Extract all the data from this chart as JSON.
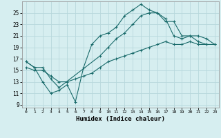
{
  "xlabel": "Humidex (Indice chaleur)",
  "background_color": "#d6eef0",
  "grid_color": "#b8d8dc",
  "line_color": "#1a6b6b",
  "x_ticks": [
    0,
    1,
    2,
    3,
    4,
    5,
    6,
    7,
    8,
    9,
    10,
    11,
    12,
    13,
    14,
    15,
    16,
    17,
    18,
    19,
    20,
    21,
    22,
    23
  ],
  "y_ticks": [
    9,
    11,
    13,
    15,
    17,
    19,
    21,
    23,
    25
  ],
  "ylim": [
    8.5,
    27
  ],
  "xlim": [
    -0.5,
    23.5
  ],
  "line_jagged_x": [
    0,
    1,
    2,
    3,
    4,
    5,
    6,
    7,
    8,
    9,
    10,
    11,
    12,
    13,
    14,
    15,
    16,
    17,
    18,
    19,
    20,
    21,
    22
  ],
  "line_jagged_y": [
    16.5,
    15.5,
    13.0,
    11.0,
    11.5,
    12.5,
    9.5,
    15.5,
    19.5,
    21.0,
    21.5,
    22.5,
    24.5,
    25.5,
    26.5,
    25.5,
    25.0,
    24.0,
    21.0,
    20.5,
    21.0,
    20.0,
    19.5
  ],
  "line_upper_x": [
    0,
    1,
    2,
    3,
    4,
    9,
    10,
    11,
    12,
    13,
    14,
    15,
    16,
    17,
    18,
    19,
    20,
    21,
    22,
    23
  ],
  "line_upper_y": [
    16.5,
    15.5,
    15.5,
    13.5,
    12.0,
    17.5,
    19.0,
    20.5,
    21.5,
    23.0,
    24.5,
    25.0,
    25.0,
    23.5,
    23.5,
    21.0,
    21.0,
    21.0,
    20.5,
    19.5
  ],
  "line_lower_x": [
    0,
    1,
    2,
    3,
    4,
    5,
    6,
    7,
    8,
    9,
    10,
    11,
    12,
    13,
    14,
    15,
    16,
    17,
    18,
    19,
    20,
    21,
    22,
    23
  ],
  "line_lower_y": [
    15.5,
    15.0,
    15.0,
    14.0,
    13.0,
    13.0,
    13.5,
    14.0,
    14.5,
    15.5,
    16.5,
    17.0,
    17.5,
    18.0,
    18.5,
    19.0,
    19.5,
    20.0,
    19.5,
    19.5,
    20.0,
    19.5,
    19.5,
    19.5
  ]
}
